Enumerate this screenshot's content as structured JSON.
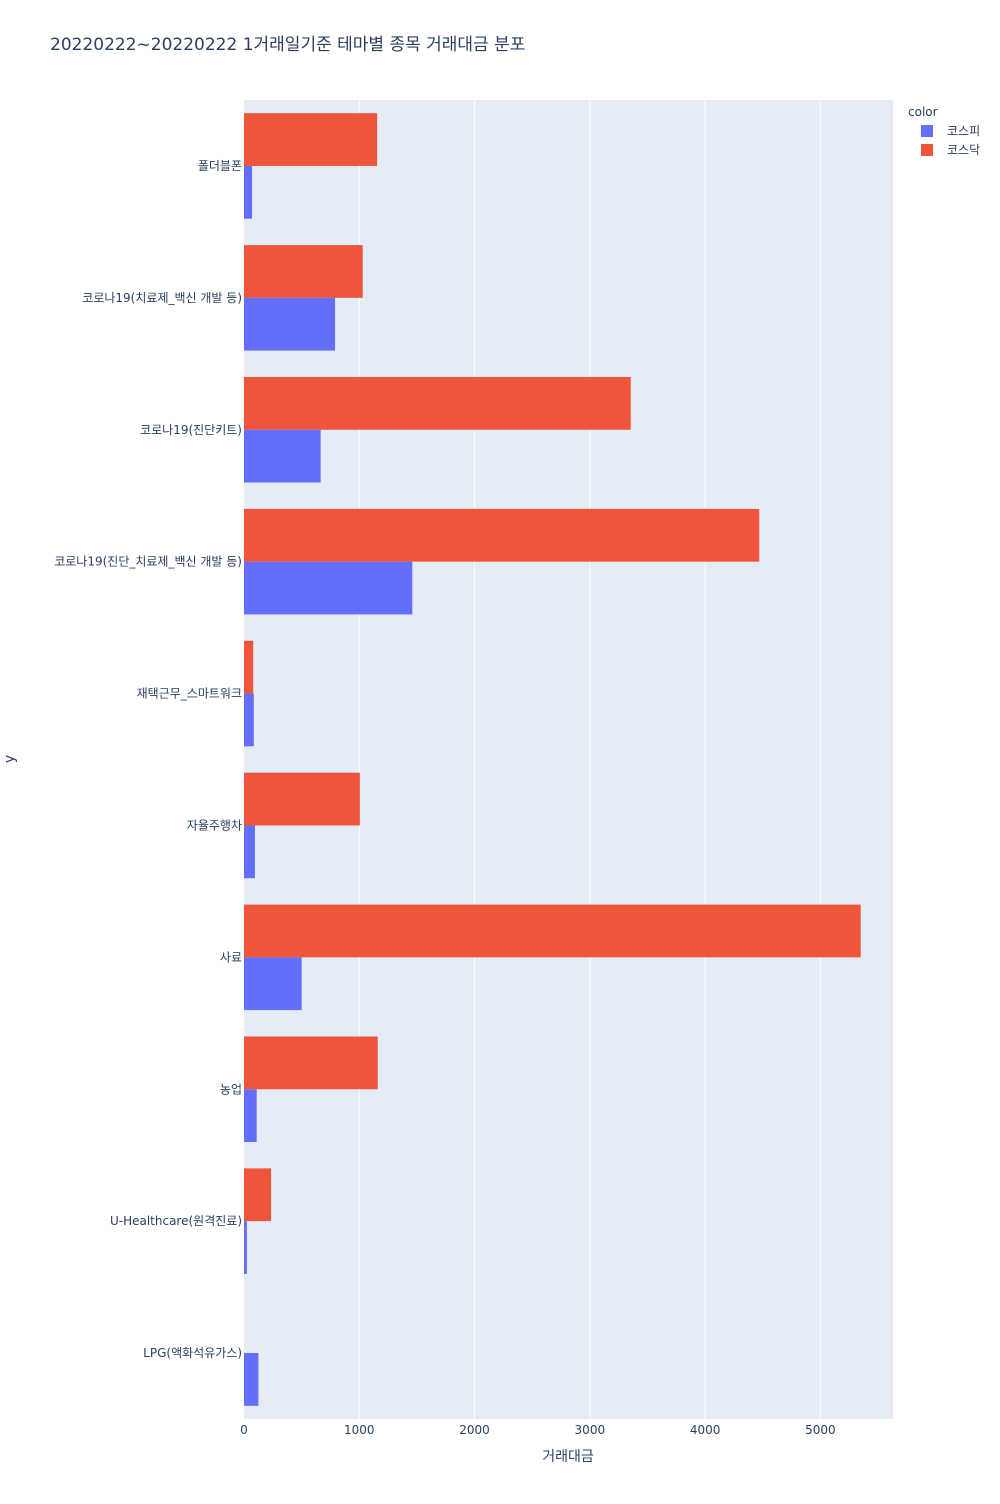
{
  "chart_data": {
    "type": "bar",
    "orientation": "horizontal",
    "title": "20220222~20220222 1거래일기준 테마별 종목 거래대금 분포",
    "xlabel": "거래대금",
    "ylabel": "y",
    "xlim": [
      0,
      5630
    ],
    "x_ticks": [
      0,
      1000,
      2000,
      3000,
      4000,
      5000
    ],
    "x_tick_labels": [
      "0",
      "1000",
      "2000",
      "3000",
      "4000",
      "5000"
    ],
    "grid": true,
    "legend": {
      "title": "color",
      "placement": "top-right",
      "entries": [
        "코스피",
        "코스닥"
      ]
    },
    "categories": [
      "폴더블폰",
      "코로나19(치료제_백신 개발 등)",
      "코로나19(진단키트)",
      "코로나19(진단_치료제_백신 개발 등)",
      "재택근무_스마트워크",
      "자율주행차",
      "사료",
      "농업",
      "U-Healthcare(원격진료)",
      "LPG(액화석유가스)"
    ],
    "series": [
      {
        "name": "코스피",
        "color": "#636efa",
        "values": [
          70,
          790,
          665,
          1460,
          85,
          95,
          500,
          110,
          25,
          125
        ]
      },
      {
        "name": "코스닥",
        "color": "#ef553b",
        "values": [
          1155,
          1030,
          3355,
          4470,
          80,
          1005,
          5350,
          1160,
          235,
          null
        ]
      }
    ]
  }
}
